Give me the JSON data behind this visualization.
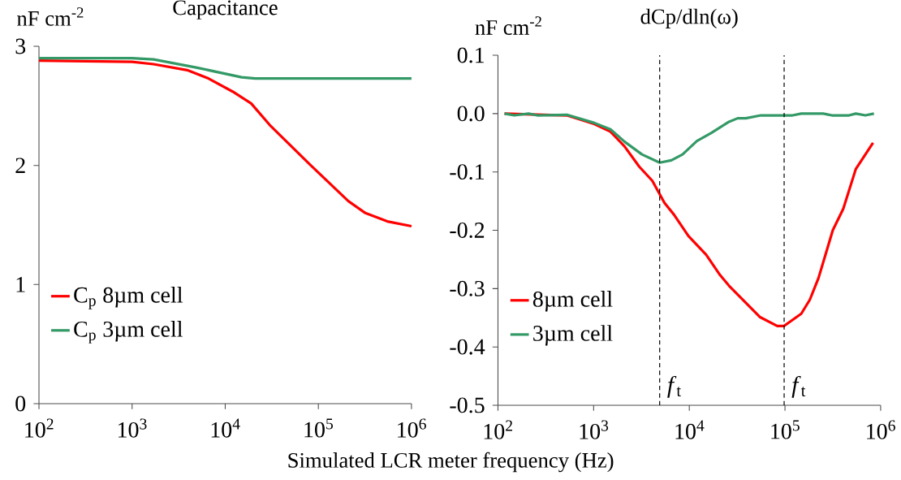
{
  "chart_data": [
    {
      "type": "line",
      "title": "Capacitance",
      "ylabel": "nF cm$^{-2}$",
      "xlabel": "Simulated LCR meter frequency (Hz)",
      "log": "x",
      "legend": "bottom left",
      "xlim": [
        100,
        1000000
      ],
      "xticks": [
        {
          "value": 100,
          "label": "10$^{2}$"
        },
        {
          "value": 1000,
          "label": "10$^{3}$"
        },
        {
          "value": 10000,
          "label": "10$^{4}$"
        },
        {
          "value": 100000,
          "label": "10$^{5}$"
        },
        {
          "value": 1000000,
          "label": "10$^{6}$"
        }
      ],
      "ylim": [
        0,
        3
      ],
      "yticks": [
        0,
        1,
        2,
        3
      ],
      "series": [
        {
          "name": "C$_{p}$ 8µm cell",
          "color": "#ff0000",
          "x": [
            100,
            1000,
            1700,
            3900,
            6600,
            12000,
            19000,
            30000,
            83000,
            210000,
            320000,
            550000,
            1000000
          ],
          "values": [
            2.88,
            2.87,
            2.85,
            2.8,
            2.73,
            2.62,
            2.52,
            2.34,
            2.0,
            1.7,
            1.6,
            1.53,
            1.49
          ]
        },
        {
          "name": "C$_{p}$ 3µm cell",
          "color": "#339966",
          "x": [
            100,
            1000,
            1700,
            5000,
            15000,
            21000,
            1000000
          ],
          "values": [
            2.9,
            2.9,
            2.89,
            2.82,
            2.74,
            2.73,
            2.73
          ]
        }
      ]
    },
    {
      "type": "line",
      "title": "dCp/dln(ω)",
      "ylabel": "nF cm$^{-2}$",
      "log": "x",
      "legend": "bottom left",
      "xlim": [
        100,
        1000000
      ],
      "xticks": [
        {
          "value": 100,
          "label": "10$^{2}$"
        },
        {
          "value": 1000,
          "label": "10$^{3}$"
        },
        {
          "value": 10000,
          "label": "10$^{4}$"
        },
        {
          "value": 100000,
          "label": "10$^{5}$"
        },
        {
          "value": 1000000,
          "label": "10$^{6}$"
        }
      ],
      "ylim": [
        -0.5,
        0.1
      ],
      "yticks": [
        -0.5,
        -0.4,
        -0.3,
        -0.2,
        -0.1,
        {
          "value": 0,
          "label": "0.0"
        },
        0.1
      ],
      "ref_lines": [
        {
          "axis": "x",
          "value": 4900,
          "label": "*f*$_{t}$",
          "line_style": "dashed"
        },
        {
          "axis": "x",
          "value": 98000,
          "label": "*f*$_{t}$",
          "line_style": "dashed"
        }
      ],
      "series": [
        {
          "name": "8µm cell",
          "color": "#ff0000",
          "x": [
            117,
            300,
            525,
            1020,
            1500,
            2100,
            3000,
            4100,
            5500,
            6900,
            9800,
            15000,
            21000,
            26000,
            55000,
            83000,
            98000,
            148000,
            182000,
            224000,
            316000,
            407000,
            550000,
            832000
          ],
          "values": [
            0,
            -0.002,
            -0.003,
            -0.018,
            -0.031,
            -0.056,
            -0.091,
            -0.115,
            -0.153,
            -0.173,
            -0.21,
            -0.242,
            -0.277,
            -0.295,
            -0.349,
            -0.364,
            -0.364,
            -0.343,
            -0.319,
            -0.282,
            -0.2,
            -0.163,
            -0.095,
            -0.05
          ]
        },
        {
          "name": "3µm cell",
          "color": "#339966",
          "x": [
            117,
            148,
            209,
            257,
            525,
            1020,
            1500,
            2100,
            3200,
            4900,
            6500,
            8500,
            12000,
            17000,
            26000,
            32000,
            39000,
            56000,
            120000,
            148000,
            251000,
            309000,
            468000,
            550000,
            692000,
            851000
          ],
          "values": [
            0,
            -0.003,
            0,
            -0.003,
            -0.002,
            -0.016,
            -0.027,
            -0.048,
            -0.07,
            -0.084,
            -0.08,
            -0.07,
            -0.047,
            -0.033,
            -0.014,
            -0.008,
            -0.008,
            -0.003,
            -0.003,
            0,
            0,
            -0.003,
            -0.003,
            0,
            -0.003,
            0
          ]
        }
      ]
    }
  ]
}
